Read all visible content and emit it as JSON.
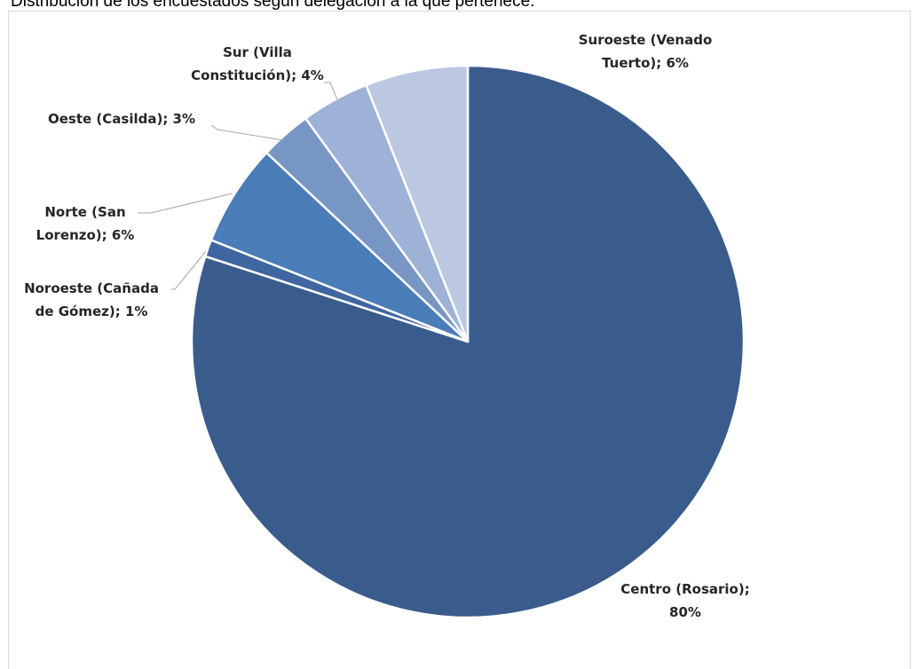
{
  "caption": "Distribución de los encuestados según delegación a la que pertenece.",
  "chart_data": {
    "type": "pie",
    "title": "",
    "start_angle_deg": 0,
    "direction": "clockwise",
    "slices": [
      {
        "name": "Centro (Rosario)",
        "label_lines": [
          "Centro (Rosario);",
          "80%"
        ],
        "value": 80,
        "color": "#3a5c8c"
      },
      {
        "name": "Noroeste (Cañada de Gómez)",
        "label_lines": [
          "Noroeste (Cañada",
          "de Gómez); 1%"
        ],
        "value": 1,
        "color": "#3f66a0"
      },
      {
        "name": "Norte (San Lorenzo)",
        "label_lines": [
          "Norte (San",
          "Lorenzo); 6%"
        ],
        "value": 6,
        "color": "#4a7cb8"
      },
      {
        "name": "Oeste (Casilda)",
        "label_lines": [
          "Oeste (Casilda); 3%"
        ],
        "value": 3,
        "color": "#7896c4"
      },
      {
        "name": "Sur (Villa Constitución)",
        "label_lines": [
          "Sur (Villa",
          "Constitución); 4%"
        ],
        "value": 4,
        "color": "#9db2d6"
      },
      {
        "name": "Suroeste (Venado Tuerto)",
        "label_lines": [
          "Suroeste (Venado",
          "Tuerto); 6%"
        ],
        "value": 6,
        "color": "#bcc8e2"
      }
    ]
  }
}
